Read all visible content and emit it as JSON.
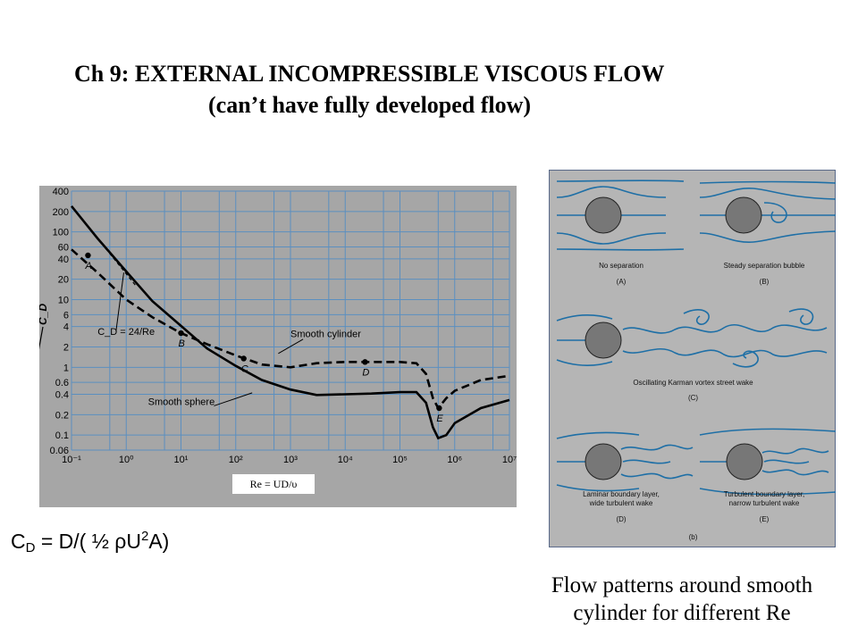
{
  "slide": {
    "title_line1": "Ch 9: EXTERNAL INCOMPRESSIBLE VISCOUS FLOW",
    "title_line2": "(can’t have fully developed flow)",
    "formula": {
      "c": "C",
      "d": "D",
      "mid": " = D/( ½ ρU",
      "two": "2",
      "end": "A)"
    },
    "caption_line1": "Flow patterns around smooth",
    "caption_line2": "cylinder for different Re"
  },
  "chart_data": {
    "type": "line",
    "x_scale": "log",
    "y_scale": "log",
    "xlim": [
      0.1,
      10000000
    ],
    "ylim": [
      0.06,
      400
    ],
    "x_ticks": [
      {
        "v": 0.1,
        "label": "10⁻¹"
      },
      {
        "v": 1,
        "label": "10⁰"
      },
      {
        "v": 10,
        "label": "10¹"
      },
      {
        "v": 100,
        "label": "10²"
      },
      {
        "v": 1000,
        "label": "10³"
      },
      {
        "v": 10000,
        "label": "10⁴"
      },
      {
        "v": 100000,
        "label": "10⁵"
      },
      {
        "v": 1000000,
        "label": "10⁶"
      },
      {
        "v": 10000000,
        "label": "10⁷"
      }
    ],
    "y_ticks": [
      {
        "v": 400,
        "label": "400"
      },
      {
        "v": 200,
        "label": "200"
      },
      {
        "v": 100,
        "label": "100"
      },
      {
        "v": 60,
        "label": "60"
      },
      {
        "v": 40,
        "label": "40"
      },
      {
        "v": 20,
        "label": "20"
      },
      {
        "v": 10,
        "label": "10"
      },
      {
        "v": 6,
        "label": "6"
      },
      {
        "v": 4,
        "label": "4"
      },
      {
        "v": 2,
        "label": "2"
      },
      {
        "v": 1,
        "label": "1"
      },
      {
        "v": 0.6,
        "label": "0.6"
      },
      {
        "v": 0.4,
        "label": "0.4"
      },
      {
        "v": 0.2,
        "label": "0.2"
      },
      {
        "v": 0.1,
        "label": "0.1"
      },
      {
        "v": 0.06,
        "label": "0.06"
      }
    ],
    "grid_x": [
      0.1,
      1,
      10,
      100,
      1000,
      10000,
      100000,
      1000000,
      10000000,
      0.5,
      5,
      50,
      500,
      5000,
      50000,
      500000,
      5000000
    ],
    "grid_y": [
      400,
      200,
      100,
      60,
      40,
      20,
      10,
      6,
      4,
      2,
      1,
      0.6,
      0.4,
      0.2,
      0.1,
      0.06
    ],
    "xlabel": "Re = UD/υ",
    "ylabel": "C_D",
    "series": [
      {
        "name": "Smooth sphere",
        "style": "solid",
        "x": [
          0.1,
          0.3,
          1,
          3,
          10,
          30,
          100,
          300,
          1000,
          3000,
          10000,
          30000,
          100000,
          200000,
          300000,
          400000,
          500000,
          700000,
          1000000,
          3000000,
          10000000
        ],
        "y": [
          240,
          80,
          26,
          9.5,
          4.1,
          1.9,
          1.05,
          0.65,
          0.47,
          0.39,
          0.4,
          0.41,
          0.43,
          0.43,
          0.3,
          0.13,
          0.09,
          0.1,
          0.15,
          0.25,
          0.33
        ]
      },
      {
        "name": "Smooth cylinder",
        "style": "dashed",
        "x": [
          0.1,
          0.3,
          1,
          3,
          10,
          30,
          100,
          300,
          1000,
          3000,
          10000,
          30000,
          100000,
          200000,
          300000,
          400000,
          500000,
          700000,
          1000000,
          3000000,
          10000000
        ],
        "y": [
          55,
          25,
          10,
          5.5,
          3.2,
          2.2,
          1.5,
          1.1,
          1.0,
          1.15,
          1.2,
          1.2,
          1.2,
          1.15,
          0.8,
          0.35,
          0.25,
          0.35,
          0.45,
          0.65,
          0.75
        ]
      },
      {
        "name": "C_D = 24/Re",
        "style": "reference",
        "x": [
          0.3,
          1.5
        ],
        "y": [
          80,
          16
        ]
      }
    ],
    "point_labels": [
      {
        "label": "A",
        "x": 0.2,
        "y": 45
      },
      {
        "label": "B",
        "x": 10,
        "y": 3.2
      },
      {
        "label": "C",
        "x": 140,
        "y": 1.35
      },
      {
        "label": "D",
        "x": 23000,
        "y": 1.2
      },
      {
        "label": "E",
        "x": 520000,
        "y": 0.25
      }
    ],
    "annotations": [
      {
        "text": "Smooth cylinder",
        "x": 1000,
        "y": 2.8
      },
      {
        "text": "Smooth sphere",
        "x": 2.5,
        "y": 0.28
      },
      {
        "text": "C_D = 24/Re",
        "x": 0.3,
        "y": 3
      }
    ],
    "colors": {
      "plot_bg": "#a6a6a6",
      "grid": "#5b8fc0",
      "curve": "#000000"
    }
  },
  "flow_figure": {
    "captions": {
      "a": "No separation",
      "a_id": "(A)",
      "b": "Steady separation bubble",
      "b_id": "(B)",
      "c": "Oscillating Karman vortex street wake",
      "c_id": "(C)",
      "d1": "Laminar boundary layer,",
      "d2": "wide turbulent wake",
      "d_id": "(D)",
      "e1": "Turbulent boundary layer,",
      "e2": "narrow turbulent wake",
      "e_id": "(E)",
      "fig_id": "(b)"
    },
    "colors": {
      "streamline": "#1e6fa6",
      "cylinder": "#777777",
      "panel": "#b5b5b5"
    }
  }
}
